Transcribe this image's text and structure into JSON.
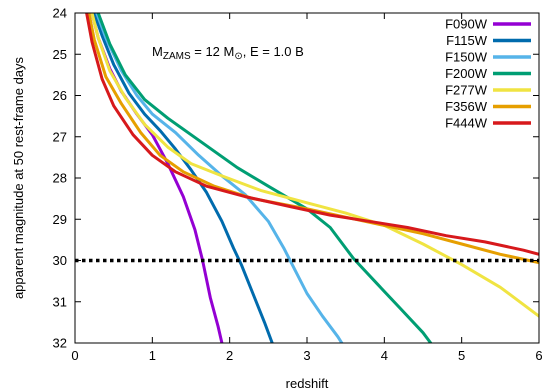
{
  "chart_data": {
    "type": "line",
    "xlabel": "redshift",
    "ylabel": "apparent magnitude at 50 rest-frame days",
    "xlim": [
      0,
      6
    ],
    "ylim": [
      24,
      32
    ],
    "y_inverted": true,
    "xticks": [
      0,
      1,
      2,
      3,
      4,
      5,
      6
    ],
    "yticks": [
      24,
      25,
      26,
      27,
      28,
      29,
      30,
      31,
      32
    ],
    "grid": false,
    "legend_position": "top-right",
    "annotation": {
      "parts": [
        {
          "text": "M",
          "style": "normal"
        },
        {
          "text": "ZAMS",
          "style": "sub"
        },
        {
          "text": " = 12 M",
          "style": "normal"
        },
        {
          "text": "⊙",
          "style": "sub"
        },
        {
          "text": ", E = 1.0 B",
          "style": "normal"
        }
      ]
    },
    "reference_lines": [
      {
        "y": 30,
        "style": "dotted",
        "color": "#000000"
      }
    ],
    "series": [
      {
        "name": "F090W",
        "color": "#9400D3",
        "points": [
          [
            0.22,
            24.0
          ],
          [
            0.3,
            24.6
          ],
          [
            0.45,
            25.35
          ],
          [
            0.6,
            25.9
          ],
          [
            0.8,
            26.45
          ],
          [
            1.0,
            26.95
          ],
          [
            1.2,
            27.65
          ],
          [
            1.4,
            28.45
          ],
          [
            1.55,
            29.25
          ],
          [
            1.65,
            30.0
          ],
          [
            1.75,
            30.9
          ],
          [
            1.85,
            31.6
          ],
          [
            1.9,
            32.0
          ]
        ]
      },
      {
        "name": "F115W",
        "color": "#006BAD",
        "points": [
          [
            0.25,
            24.0
          ],
          [
            0.35,
            24.55
          ],
          [
            0.5,
            25.25
          ],
          [
            0.7,
            25.95
          ],
          [
            0.9,
            26.45
          ],
          [
            1.1,
            26.85
          ],
          [
            1.3,
            27.3
          ],
          [
            1.5,
            27.8
          ],
          [
            1.7,
            28.35
          ],
          [
            1.9,
            29.05
          ],
          [
            2.05,
            29.7
          ],
          [
            2.15,
            30.1
          ],
          [
            2.3,
            30.8
          ],
          [
            2.45,
            31.5
          ],
          [
            2.55,
            32.0
          ]
        ]
      },
      {
        "name": "F150W",
        "color": "#56B4E9",
        "points": [
          [
            0.28,
            24.0
          ],
          [
            0.4,
            24.6
          ],
          [
            0.6,
            25.4
          ],
          [
            0.8,
            26.0
          ],
          [
            1.0,
            26.45
          ],
          [
            1.3,
            26.9
          ],
          [
            1.6,
            27.45
          ],
          [
            1.9,
            27.95
          ],
          [
            2.2,
            28.4
          ],
          [
            2.5,
            29.05
          ],
          [
            2.7,
            29.7
          ],
          [
            2.85,
            30.25
          ],
          [
            3.0,
            30.8
          ],
          [
            3.2,
            31.35
          ],
          [
            3.4,
            31.85
          ],
          [
            3.45,
            32.0
          ]
        ]
      },
      {
        "name": "F200W",
        "color": "#009E73",
        "points": [
          [
            0.3,
            24.0
          ],
          [
            0.45,
            24.75
          ],
          [
            0.65,
            25.5
          ],
          [
            0.9,
            26.1
          ],
          [
            1.2,
            26.55
          ],
          [
            1.5,
            26.95
          ],
          [
            1.8,
            27.35
          ],
          [
            2.1,
            27.75
          ],
          [
            2.5,
            28.2
          ],
          [
            3.0,
            28.75
          ],
          [
            3.3,
            29.2
          ],
          [
            3.6,
            29.95
          ],
          [
            3.9,
            30.55
          ],
          [
            4.2,
            31.15
          ],
          [
            4.5,
            31.75
          ],
          [
            4.6,
            32.0
          ]
        ]
      },
      {
        "name": "F277W",
        "color": "#F0E442",
        "points": [
          [
            0.22,
            24.0
          ],
          [
            0.3,
            24.6
          ],
          [
            0.45,
            25.4
          ],
          [
            0.65,
            26.05
          ],
          [
            0.9,
            26.7
          ],
          [
            1.2,
            27.25
          ],
          [
            1.5,
            27.65
          ],
          [
            1.9,
            27.95
          ],
          [
            2.4,
            28.3
          ],
          [
            3.0,
            28.6
          ],
          [
            3.5,
            28.85
          ],
          [
            4.0,
            29.15
          ],
          [
            4.5,
            29.6
          ],
          [
            5.0,
            30.1
          ],
          [
            5.5,
            30.65
          ],
          [
            6.0,
            31.35
          ]
        ]
      },
      {
        "name": "F356W",
        "color": "#E69F00",
        "points": [
          [
            0.18,
            24.0
          ],
          [
            0.25,
            24.65
          ],
          [
            0.4,
            25.55
          ],
          [
            0.6,
            26.2
          ],
          [
            0.85,
            26.9
          ],
          [
            1.1,
            27.45
          ],
          [
            1.4,
            27.85
          ],
          [
            1.8,
            28.2
          ],
          [
            2.3,
            28.5
          ],
          [
            3.0,
            28.75
          ],
          [
            3.5,
            28.95
          ],
          [
            4.0,
            29.15
          ],
          [
            4.5,
            29.35
          ],
          [
            5.0,
            29.6
          ],
          [
            5.5,
            29.85
          ],
          [
            6.0,
            30.05
          ]
        ]
      },
      {
        "name": "F444W",
        "color": "#D7191C",
        "points": [
          [
            0.15,
            24.0
          ],
          [
            0.22,
            24.7
          ],
          [
            0.35,
            25.6
          ],
          [
            0.5,
            26.25
          ],
          [
            0.75,
            26.95
          ],
          [
            1.0,
            27.45
          ],
          [
            1.3,
            27.85
          ],
          [
            1.7,
            28.2
          ],
          [
            2.2,
            28.45
          ],
          [
            2.8,
            28.7
          ],
          [
            3.3,
            28.9
          ],
          [
            3.8,
            29.05
          ],
          [
            4.3,
            29.2
          ],
          [
            4.8,
            29.4
          ],
          [
            5.3,
            29.55
          ],
          [
            5.8,
            29.75
          ],
          [
            6.0,
            29.85
          ]
        ]
      }
    ]
  }
}
